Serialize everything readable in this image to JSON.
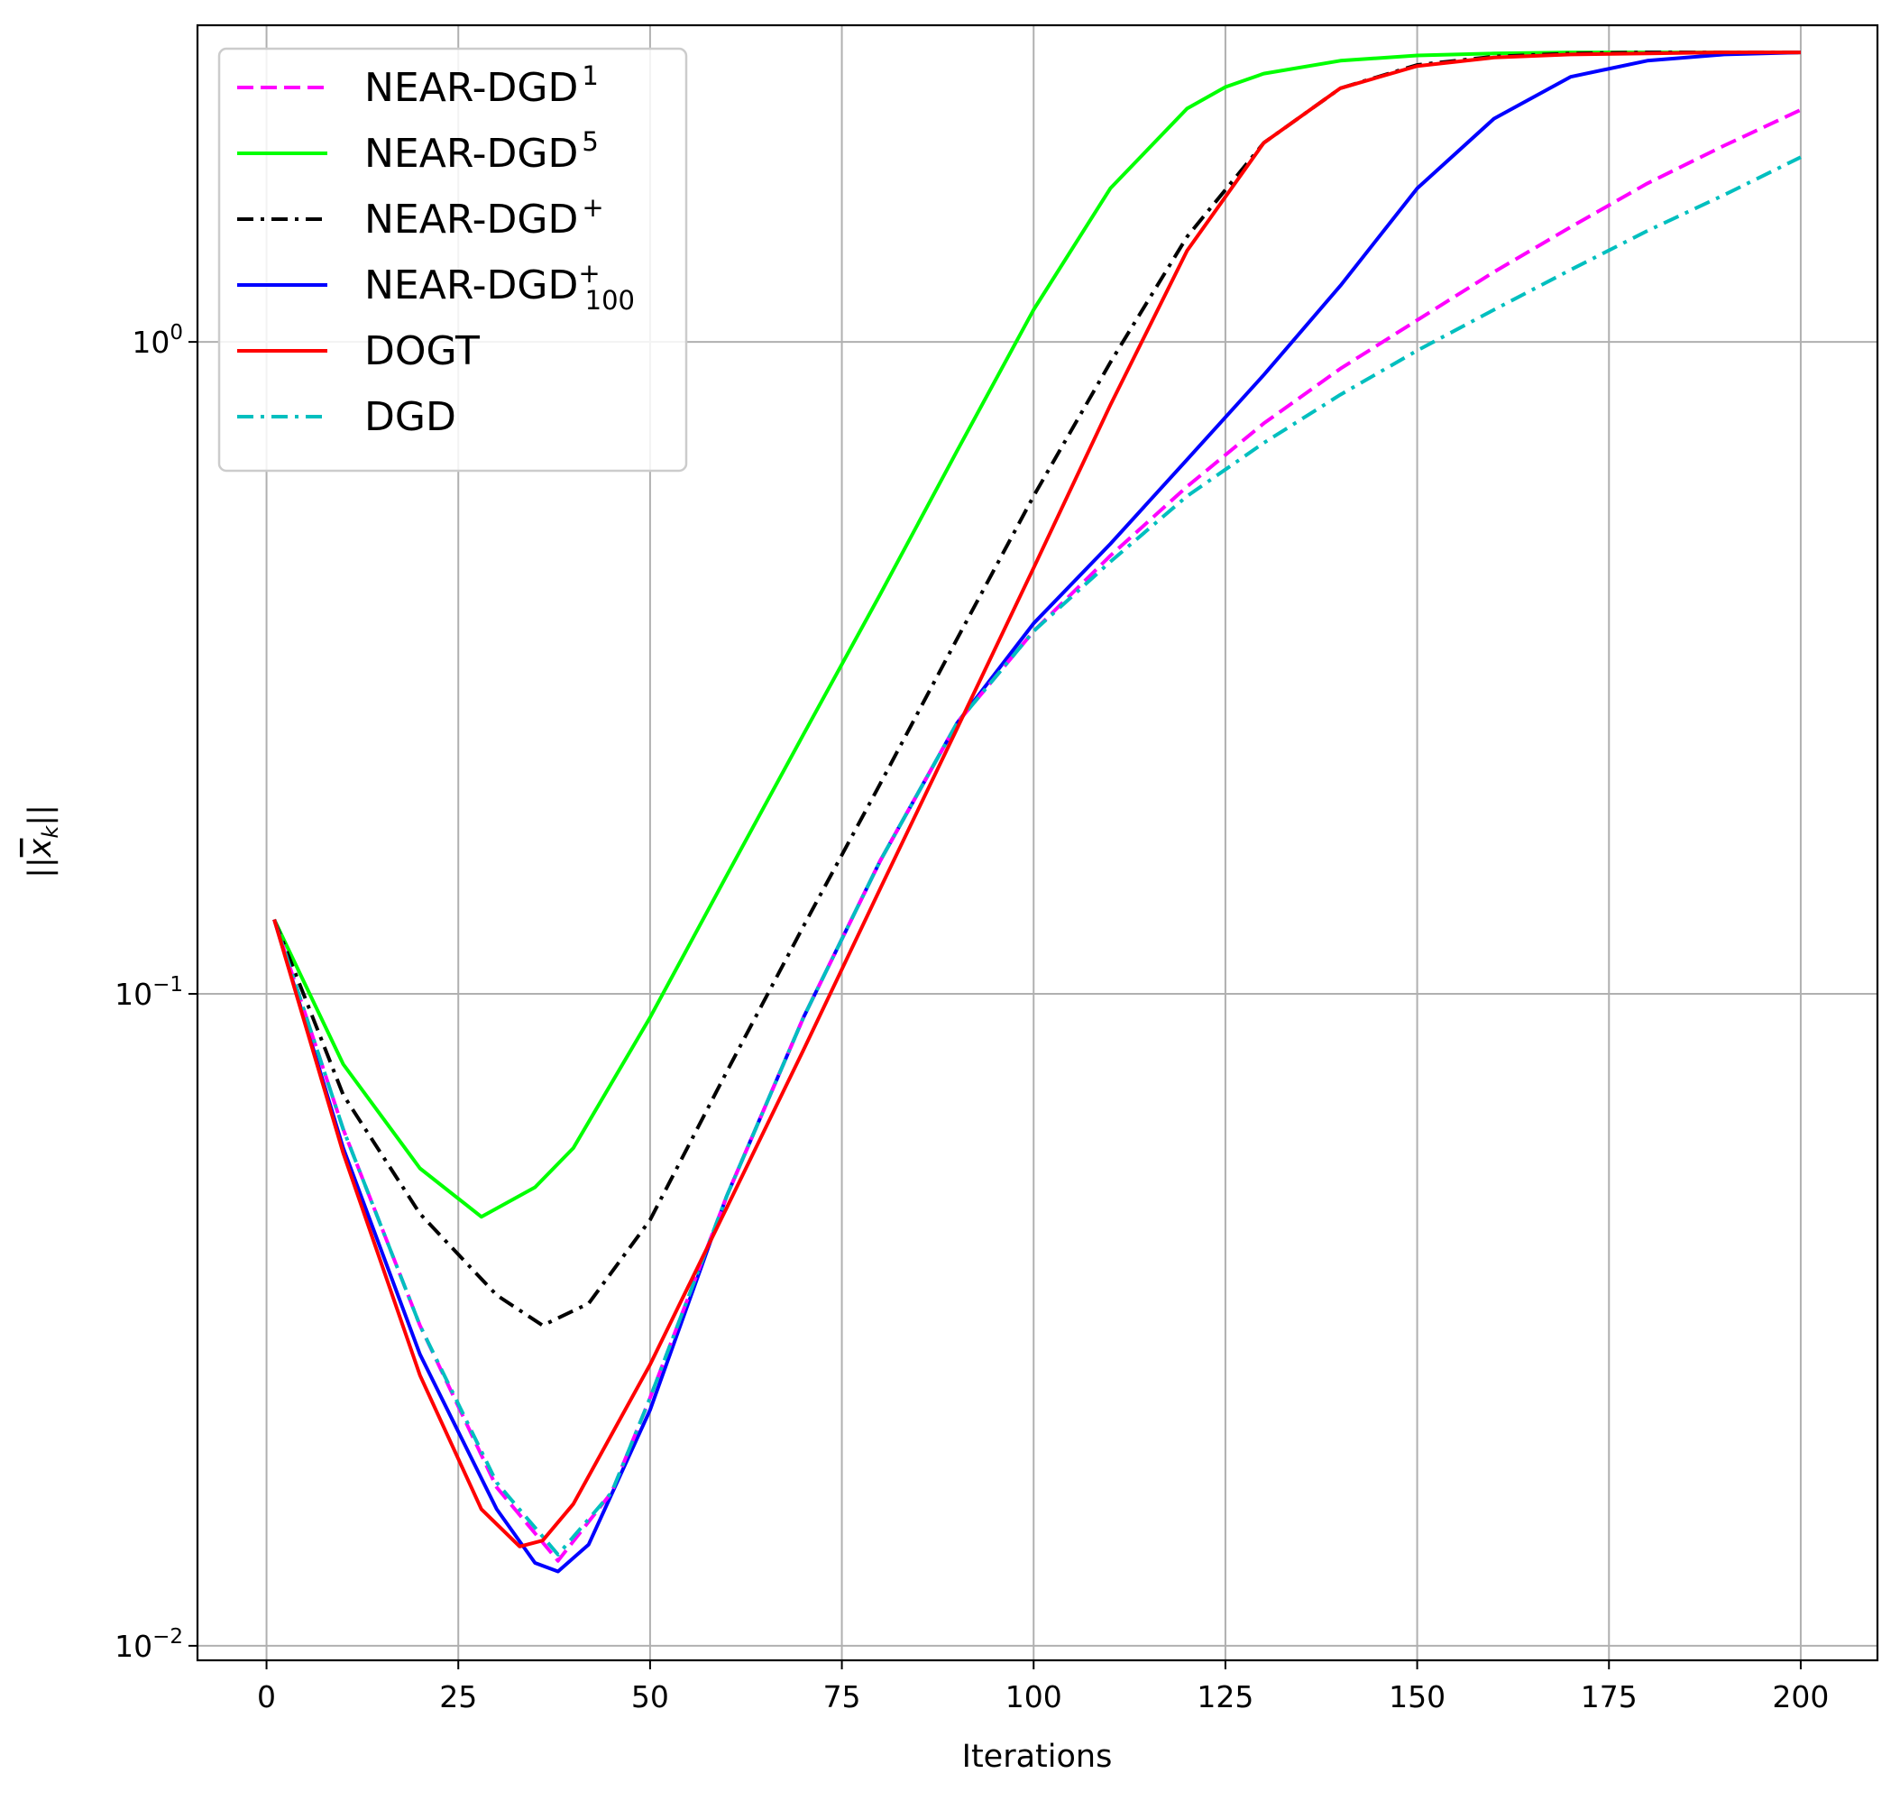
{
  "chart_data": {
    "type": "line",
    "xlabel": "Iterations",
    "ylabel": "||x̄_k||",
    "yscale": "log",
    "xlim": [
      -9,
      210
    ],
    "ylim": [
      0.0095,
      3.06
    ],
    "x_ticks": [
      0,
      25,
      50,
      75,
      100,
      125,
      150,
      175,
      200
    ],
    "y_ticks": [
      {
        "value": 0.01,
        "base": "10",
        "exp": "−2"
      },
      {
        "value": 0.1,
        "base": "10",
        "exp": "−1"
      },
      {
        "value": 1,
        "base": "10",
        "exp": "0"
      }
    ],
    "grid": true,
    "legend_position": "top-left",
    "series": [
      {
        "name": "NEAR-DGD",
        "sup": "1",
        "sub": "",
        "color": "#ff00ff",
        "dash": "dashed",
        "x": [
          1,
          10,
          20,
          30,
          38,
          45,
          50,
          60,
          70,
          80,
          90,
          100,
          110,
          120,
          130,
          140,
          150,
          160,
          170,
          180,
          190,
          200
        ],
        "y": [
          0.13,
          0.062,
          0.031,
          0.0175,
          0.0135,
          0.0172,
          0.024,
          0.049,
          0.092,
          0.16,
          0.26,
          0.36,
          0.47,
          0.6,
          0.75,
          0.91,
          1.08,
          1.28,
          1.5,
          1.75,
          2.0,
          2.27
        ]
      },
      {
        "name": "NEAR-DGD",
        "sup": "5",
        "sub": "",
        "color": "#00ff00",
        "dash": "solid",
        "x": [
          1,
          10,
          20,
          28,
          35,
          40,
          50,
          60,
          70,
          80,
          90,
          100,
          110,
          120,
          125,
          130,
          140,
          150,
          160,
          170,
          180,
          190,
          200
        ],
        "y": [
          0.13,
          0.078,
          0.054,
          0.0455,
          0.0505,
          0.058,
          0.092,
          0.152,
          0.25,
          0.41,
          0.68,
          1.12,
          1.72,
          2.28,
          2.46,
          2.58,
          2.7,
          2.75,
          2.77,
          2.78,
          2.78,
          2.78,
          2.78
        ]
      },
      {
        "name": "NEAR-DGD",
        "sup": "+",
        "sub": "",
        "color": "#000000",
        "dash": "dashdot",
        "x": [
          1,
          10,
          20,
          30,
          36,
          42,
          50,
          60,
          70,
          80,
          90,
          100,
          110,
          120,
          130,
          140,
          150,
          160,
          170,
          180,
          190,
          200
        ],
        "y": [
          0.13,
          0.07,
          0.046,
          0.0345,
          0.031,
          0.0335,
          0.045,
          0.076,
          0.127,
          0.21,
          0.35,
          0.58,
          0.93,
          1.45,
          2.02,
          2.45,
          2.66,
          2.74,
          2.77,
          2.78,
          2.78,
          2.78
        ]
      },
      {
        "name": "NEAR-DGD",
        "sup": "+",
        "sub": "100",
        "color": "#0000ff",
        "dash": "solid",
        "x": [
          1,
          10,
          20,
          30,
          35,
          38,
          42,
          50,
          60,
          70,
          80,
          90,
          100,
          110,
          120,
          130,
          140,
          150,
          160,
          170,
          180,
          190,
          200
        ],
        "y": [
          0.13,
          0.058,
          0.028,
          0.0162,
          0.0134,
          0.013,
          0.0143,
          0.023,
          0.049,
          0.092,
          0.16,
          0.26,
          0.37,
          0.49,
          0.66,
          0.89,
          1.22,
          1.72,
          2.2,
          2.55,
          2.7,
          2.76,
          2.78
        ]
      },
      {
        "name": "DOGT",
        "sup": "",
        "sub": "",
        "color": "#ff0000",
        "dash": "solid",
        "x": [
          1,
          10,
          20,
          28,
          33,
          36,
          40,
          50,
          60,
          70,
          80,
          90,
          100,
          110,
          120,
          130,
          140,
          150,
          160,
          170,
          180,
          190,
          200
        ],
        "y": [
          0.13,
          0.057,
          0.026,
          0.0162,
          0.0142,
          0.0145,
          0.0165,
          0.027,
          0.047,
          0.082,
          0.145,
          0.255,
          0.45,
          0.8,
          1.38,
          2.02,
          2.45,
          2.65,
          2.73,
          2.76,
          2.77,
          2.78,
          2.78
        ]
      },
      {
        "name": "DGD",
        "sup": "",
        "sub": "",
        "color": "#00bfbf",
        "dash": "dashdot",
        "x": [
          1,
          10,
          20,
          30,
          38,
          45,
          50,
          60,
          70,
          80,
          90,
          100,
          110,
          120,
          130,
          140,
          150,
          160,
          170,
          180,
          190,
          200
        ],
        "y": [
          0.13,
          0.062,
          0.031,
          0.0178,
          0.0138,
          0.0172,
          0.024,
          0.049,
          0.092,
          0.16,
          0.26,
          0.36,
          0.46,
          0.58,
          0.7,
          0.83,
          0.97,
          1.12,
          1.29,
          1.48,
          1.68,
          1.92
        ]
      }
    ]
  }
}
